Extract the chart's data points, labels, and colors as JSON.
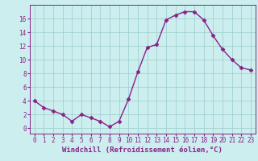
{
  "x": [
    0,
    1,
    2,
    3,
    4,
    5,
    6,
    7,
    8,
    9,
    10,
    11,
    12,
    13,
    14,
    15,
    16,
    17,
    18,
    19,
    20,
    21,
    22,
    23
  ],
  "y": [
    4,
    3,
    2.5,
    2,
    1,
    2,
    1.5,
    1,
    0.2,
    1,
    4.2,
    8.2,
    11.8,
    12.2,
    15.8,
    16.5,
    17,
    17,
    15.8,
    13.5,
    11.5,
    10,
    8.8,
    8.5
  ],
  "line_color": "#882288",
  "marker": "D",
  "markersize": 2.5,
  "linewidth": 1.0,
  "bg_color": "#cceeee",
  "grid_color": "#99cccc",
  "xlabel": "Windchill (Refroidissement éolien,°C)",
  "xlabel_fontsize": 6.5,
  "xtick_labels": [
    "0",
    "1",
    "2",
    "3",
    "4",
    "5",
    "6",
    "7",
    "8",
    "9",
    "10",
    "11",
    "12",
    "13",
    "14",
    "15",
    "16",
    "17",
    "18",
    "19",
    "20",
    "21",
    "22",
    "23"
  ],
  "ytick_vals": [
    0,
    2,
    4,
    6,
    8,
    10,
    12,
    14,
    16
  ],
  "ylim": [
    -0.8,
    18
  ],
  "xlim": [
    -0.5,
    23.5
  ],
  "tick_fontsize": 5.5
}
